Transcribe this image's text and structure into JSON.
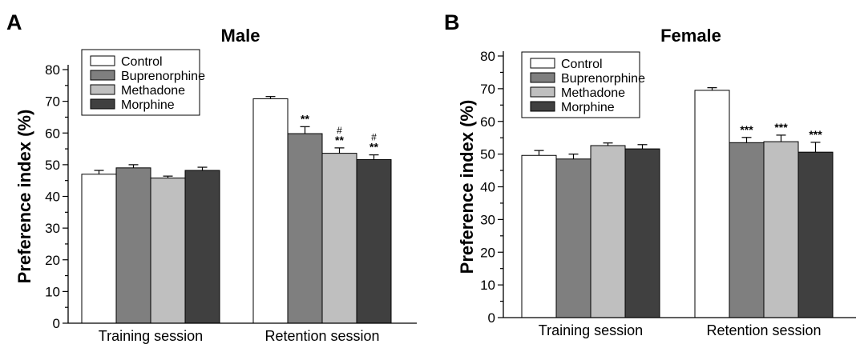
{
  "chart_data": [
    {
      "type": "bar",
      "panel": "A",
      "title": "Male",
      "ylabel": "Preference index (%)",
      "xlabel": "",
      "ylim": [
        0,
        80
      ],
      "yticks": [
        0,
        10,
        20,
        30,
        40,
        50,
        60,
        70,
        80
      ],
      "categories": [
        "Training session",
        "Retention session"
      ],
      "legend": {
        "position": "top-left"
      },
      "series": [
        {
          "name": "Control",
          "color": "#ffffff",
          "values": [
            47.0,
            70.8
          ],
          "errors": [
            1.2,
            0.7
          ],
          "annotations": [
            "",
            ""
          ]
        },
        {
          "name": "Buprenorphine",
          "color": "#7f7f7f",
          "values": [
            49.0,
            59.8
          ],
          "errors": [
            1.0,
            2.2
          ],
          "annotations": [
            "",
            "**"
          ]
        },
        {
          "name": "Methadone",
          "color": "#bfbfbf",
          "values": [
            45.8,
            53.6
          ],
          "errors": [
            0.6,
            1.7
          ],
          "annotations": [
            "",
            "#\n**"
          ]
        },
        {
          "name": "Morphine",
          "color": "#404040",
          "values": [
            48.2,
            51.6
          ],
          "errors": [
            1.0,
            1.5
          ],
          "annotations": [
            "",
            "#\n**"
          ]
        }
      ]
    },
    {
      "type": "bar",
      "panel": "B",
      "title": "Female",
      "ylabel": "Preference index (%)",
      "xlabel": "",
      "ylim": [
        0,
        80
      ],
      "yticks": [
        0,
        10,
        20,
        30,
        40,
        50,
        60,
        70,
        80
      ],
      "categories": [
        "Training session",
        "Retention session"
      ],
      "legend": {
        "position": "top-left"
      },
      "series": [
        {
          "name": "Control",
          "color": "#ffffff",
          "values": [
            49.6,
            69.5
          ],
          "errors": [
            1.5,
            0.8
          ],
          "annotations": [
            "",
            ""
          ]
        },
        {
          "name": "Buprenorphine",
          "color": "#7f7f7f",
          "values": [
            48.5,
            53.5
          ],
          "errors": [
            1.5,
            1.6
          ],
          "annotations": [
            "",
            "***"
          ]
        },
        {
          "name": "Methadone",
          "color": "#bfbfbf",
          "values": [
            52.6,
            53.8
          ],
          "errors": [
            0.8,
            2.0
          ],
          "annotations": [
            "",
            "***"
          ]
        },
        {
          "name": "Morphine",
          "color": "#404040",
          "values": [
            51.6,
            50.6
          ],
          "errors": [
            1.3,
            3.0
          ],
          "annotations": [
            "",
            "***"
          ]
        }
      ]
    }
  ]
}
